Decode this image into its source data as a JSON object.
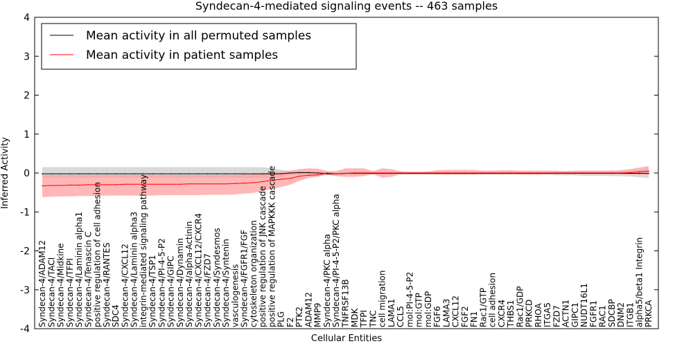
{
  "chart_data": {
    "type": "line",
    "title": "Syndecan-4-mediated signaling events -- 463 samples",
    "xlabel": "Cellular Entities",
    "ylabel": "Inferred Activity",
    "ylim": [
      -4,
      4
    ],
    "yticks": [
      -4,
      -3,
      -2,
      -1,
      0,
      1,
      2,
      3,
      4
    ],
    "legend_position": "upper-left",
    "colors": {
      "permuted": "#000000",
      "patient": "#ff0000",
      "permuted_band": "#bfbfbf",
      "patient_band": "#ff9999"
    },
    "categories": [
      "Syndecan-4/ADAM12",
      "Syndecan-4/TACI",
      "Syndecan-4/Midkine",
      "Syndecan-4/TFPI",
      "Syndecan-4/Laminin alpha1",
      "Syndecan-4/Tenascin C",
      "positive regulation of cell adhesion",
      "Syndecan-4/RANTES",
      "SDC4",
      "Syndecan-4/CXCL12",
      "Syndecan-4/Laminin alpha3",
      "integrin-mediated signaling pathway",
      "Syndecan-4/TSP1",
      "Syndecan-4/PI-4-5-P2",
      "Syndecan-4/GIPC",
      "Syndecan-4/Dynamin",
      "Syndecan-4/alpha-Actinin",
      "Syndecan-4/CXCL12/CXCR4",
      "Syndecan-4/FZD7",
      "Syndecan-4/Syndesmos",
      "Syndecan-4/Syntenin",
      "vasculogenesis",
      "Syndecan-4/FGFR1/FGF",
      "cytoskeleton organization",
      "positive regulation of JNK cascade",
      "positive regulation of MAPKKK cascade",
      "PLG",
      "F2",
      "PTK2",
      "ADAM12",
      "MMP9",
      "Syndecan-4/PKC alpha",
      "Syndecan-4/PI-4-5-P2/PKC alpha",
      "TNFRSF13B",
      "MDK",
      "TFPI",
      "TNC",
      "cell migration",
      "LAMA1",
      "CCL5",
      "mol:PI-4-5-P2",
      "mol:GTP",
      "mol:GDP",
      "FGF6",
      "LAMA3",
      "CXCL12",
      "FGF2",
      "FN1",
      "Rac1/GTP",
      "cell adhesion",
      "CXCR4",
      "THBS1",
      "Rac1/GDP",
      "PRKCD",
      "RHOA",
      "ITGA5",
      "FZD7",
      "ACTN1",
      "GIPC1",
      "NUDT16L1",
      "FGFR1",
      "RAC1",
      "SDCBP",
      "DNM2",
      "ITGB1",
      "alpha5/beta1 Integrin",
      "PRKCA"
    ],
    "series": [
      {
        "name": "Mean activity in all permuted samples",
        "values": [
          -0.02,
          -0.02,
          -0.02,
          -0.02,
          -0.02,
          -0.02,
          -0.02,
          -0.02,
          -0.02,
          -0.02,
          -0.02,
          -0.02,
          -0.02,
          -0.02,
          -0.02,
          -0.02,
          -0.02,
          -0.02,
          -0.02,
          -0.02,
          -0.02,
          -0.02,
          -0.02,
          -0.02,
          -0.02,
          -0.02,
          -0.02,
          0.0,
          0.01,
          0.01,
          0.0,
          -0.02,
          -0.02,
          -0.01,
          -0.01,
          -0.01,
          -0.01,
          -0.01,
          -0.01,
          -0.01,
          -0.01,
          -0.01,
          -0.01,
          -0.01,
          -0.01,
          -0.01,
          -0.01,
          -0.01,
          -0.01,
          -0.01,
          -0.01,
          -0.01,
          -0.01,
          -0.01,
          -0.01,
          -0.01,
          -0.01,
          -0.01,
          -0.01,
          -0.01,
          -0.01,
          -0.01,
          -0.01,
          -0.01,
          -0.01,
          -0.01,
          -0.01
        ],
        "lower": [
          -0.12,
          -0.12,
          -0.12,
          -0.12,
          -0.12,
          -0.12,
          -0.12,
          -0.12,
          -0.12,
          -0.12,
          -0.12,
          -0.12,
          -0.12,
          -0.12,
          -0.12,
          -0.12,
          -0.12,
          -0.12,
          -0.12,
          -0.12,
          -0.12,
          -0.12,
          -0.12,
          -0.12,
          -0.12,
          -0.12,
          -0.1,
          -0.05,
          -0.04,
          -0.04,
          -0.05,
          -0.06,
          -0.06,
          -0.05,
          -0.05,
          -0.05,
          -0.05,
          -0.05,
          -0.05,
          -0.05,
          -0.05,
          -0.05,
          -0.05,
          -0.05,
          -0.05,
          -0.05,
          -0.05,
          -0.05,
          -0.05,
          -0.05,
          -0.05,
          -0.05,
          -0.05,
          -0.05,
          -0.05,
          -0.05,
          -0.06,
          -0.06,
          -0.06,
          -0.07,
          -0.07,
          -0.07,
          -0.08,
          -0.08,
          -0.09,
          -0.11,
          -0.13
        ],
        "upper": [
          0.15,
          0.15,
          0.15,
          0.15,
          0.15,
          0.15,
          0.15,
          0.15,
          0.15,
          0.15,
          0.15,
          0.15,
          0.15,
          0.15,
          0.15,
          0.15,
          0.15,
          0.15,
          0.15,
          0.15,
          0.15,
          0.15,
          0.15,
          0.15,
          0.15,
          0.12,
          0.08,
          0.05,
          0.05,
          0.05,
          0.04,
          0.02,
          0.02,
          0.03,
          0.03,
          0.03,
          0.03,
          0.03,
          0.03,
          0.03,
          0.03,
          0.03,
          0.03,
          0.03,
          0.03,
          0.03,
          0.03,
          0.03,
          0.03,
          0.03,
          0.03,
          0.03,
          0.03,
          0.03,
          0.03,
          0.03,
          0.04,
          0.04,
          0.04,
          0.05,
          0.05,
          0.05,
          0.06,
          0.06,
          0.07,
          0.08,
          0.1
        ]
      },
      {
        "name": "Mean activity in patient samples",
        "values": [
          -0.33,
          -0.32,
          -0.32,
          -0.31,
          -0.31,
          -0.3,
          -0.3,
          -0.3,
          -0.3,
          -0.29,
          -0.29,
          -0.29,
          -0.29,
          -0.29,
          -0.29,
          -0.29,
          -0.28,
          -0.28,
          -0.28,
          -0.28,
          -0.28,
          -0.27,
          -0.26,
          -0.25,
          -0.22,
          -0.19,
          -0.16,
          -0.14,
          -0.08,
          -0.06,
          -0.05,
          0.0,
          -0.02,
          -0.01,
          0.0,
          0.0,
          0.0,
          0.0,
          0.0,
          0.0,
          0.0,
          0.0,
          0.0,
          0.0,
          0.0,
          0.0,
          0.0,
          0.0,
          0.0,
          0.0,
          0.0,
          0.0,
          0.0,
          0.0,
          0.0,
          0.0,
          0.0,
          0.0,
          0.0,
          0.0,
          0.0,
          0.0,
          0.0,
          0.0,
          0.01,
          0.03,
          0.05
        ],
        "lower": [
          -0.62,
          -0.61,
          -0.6,
          -0.6,
          -0.59,
          -0.59,
          -0.59,
          -0.58,
          -0.58,
          -0.58,
          -0.58,
          -0.58,
          -0.58,
          -0.57,
          -0.57,
          -0.57,
          -0.57,
          -0.57,
          -0.56,
          -0.56,
          -0.56,
          -0.55,
          -0.53,
          -0.51,
          -0.46,
          -0.41,
          -0.36,
          -0.3,
          -0.2,
          -0.13,
          -0.1,
          -0.04,
          -0.08,
          -0.1,
          -0.1,
          -0.08,
          -0.03,
          -0.12,
          -0.1,
          -0.03,
          -0.03,
          -0.03,
          -0.03,
          -0.04,
          -0.04,
          -0.04,
          -0.04,
          -0.04,
          -0.03,
          -0.03,
          -0.03,
          -0.03,
          -0.04,
          -0.04,
          -0.04,
          -0.03,
          -0.03,
          -0.03,
          -0.03,
          -0.03,
          -0.03,
          -0.03,
          -0.03,
          -0.03,
          -0.04,
          -0.04,
          -0.05
        ],
        "upper": [
          -0.05,
          -0.05,
          -0.05,
          -0.05,
          -0.05,
          -0.05,
          -0.05,
          -0.05,
          -0.05,
          -0.05,
          -0.05,
          -0.05,
          -0.05,
          -0.05,
          -0.05,
          -0.05,
          -0.05,
          -0.05,
          -0.05,
          -0.05,
          -0.05,
          -0.05,
          -0.04,
          -0.03,
          -0.01,
          0.01,
          0.04,
          0.06,
          0.1,
          0.12,
          0.11,
          0.05,
          0.05,
          0.12,
          0.12,
          0.12,
          0.05,
          0.12,
          0.1,
          0.04,
          0.03,
          0.03,
          0.04,
          0.07,
          0.08,
          0.08,
          0.08,
          0.08,
          0.06,
          0.06,
          0.07,
          0.07,
          0.06,
          0.06,
          0.06,
          0.06,
          0.06,
          0.05,
          0.06,
          0.06,
          0.06,
          0.06,
          0.06,
          0.07,
          0.1,
          0.14,
          0.18
        ]
      }
    ]
  }
}
